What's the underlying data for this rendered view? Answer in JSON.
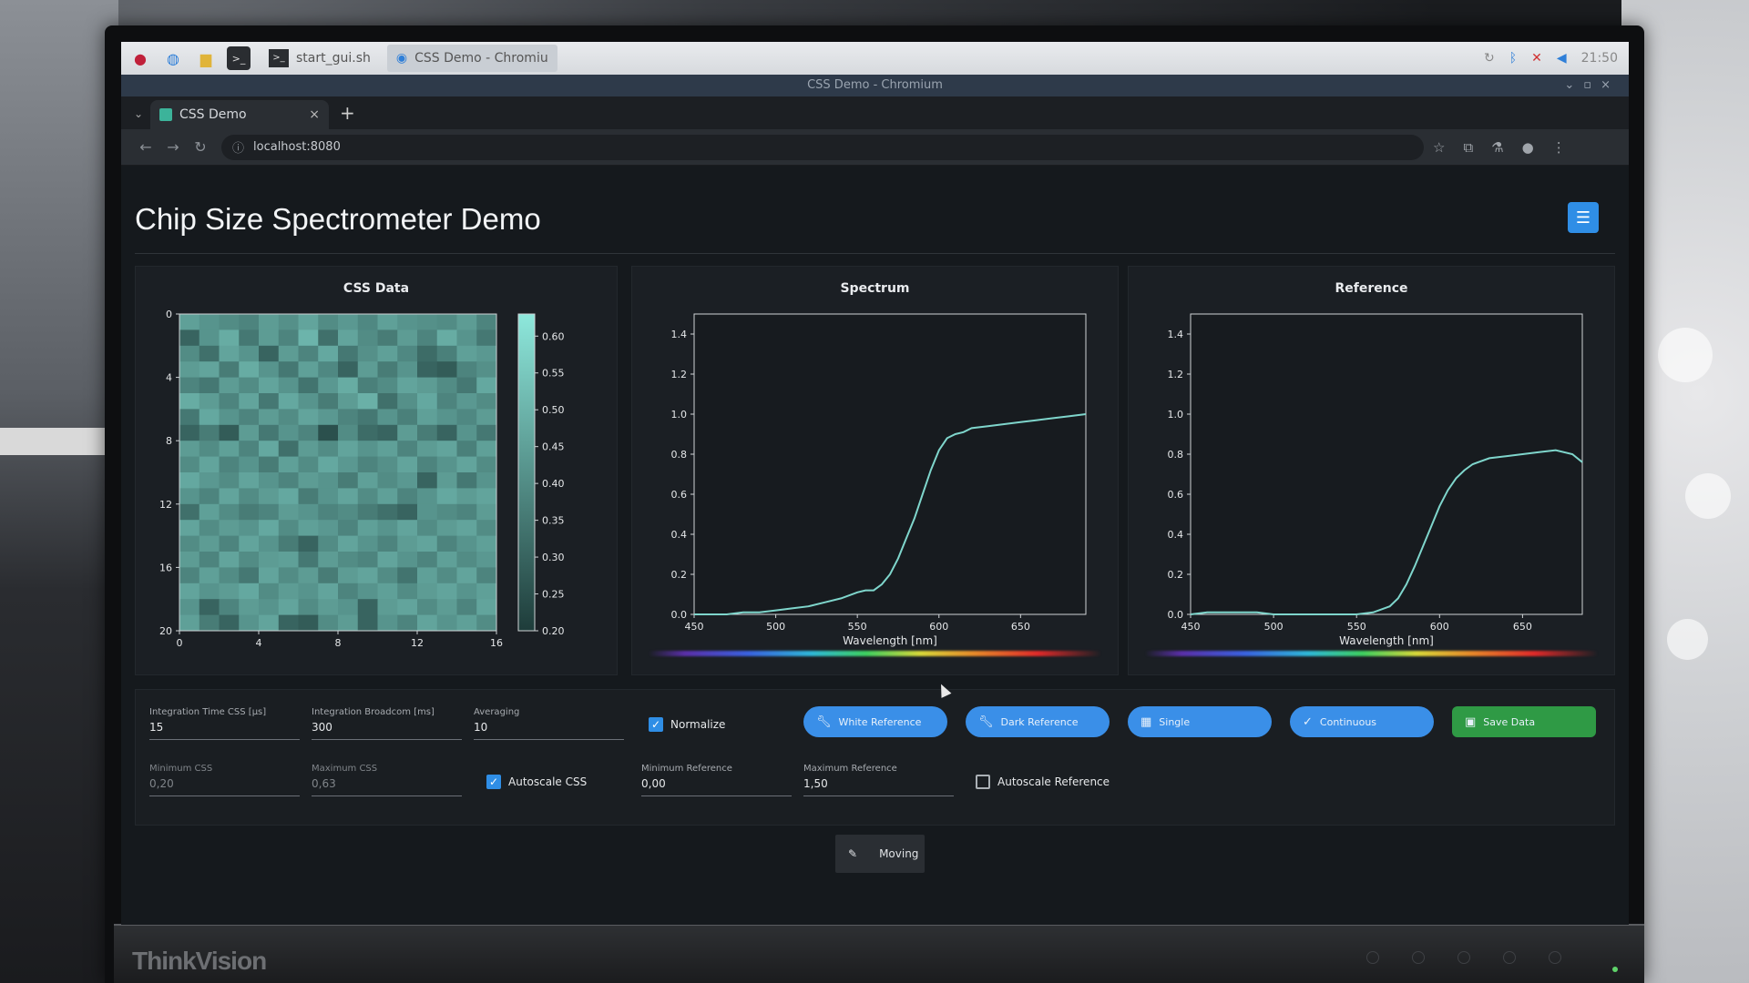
{
  "taskbar": {
    "tasks": [
      {
        "label": "start_gui.sh"
      },
      {
        "label": "CSS Demo - Chromiu"
      }
    ],
    "clock": "21:50"
  },
  "window": {
    "title": "CSS Demo - Chromium"
  },
  "browser": {
    "tab_label": "CSS Demo",
    "url": "localhost:8080"
  },
  "page": {
    "title": "Chip Size Spectrometer Demo"
  },
  "chart_data": [
    {
      "type": "heatmap",
      "title": "CSS Data",
      "xticks": [
        "0",
        "4",
        "8",
        "12",
        "16"
      ],
      "yticks": [
        "0",
        "4",
        "8",
        "12",
        "16",
        "20"
      ],
      "colorbar_ticks": [
        "0.60",
        "0.55",
        "0.50",
        "0.45",
        "0.40",
        "0.35",
        "0.30",
        "0.25",
        "0.20"
      ],
      "rows": 20,
      "cols": 16,
      "values": [
        [
          0.45,
          0.42,
          0.4,
          0.38,
          0.44,
          0.41,
          0.46,
          0.4,
          0.43,
          0.39,
          0.45,
          0.42,
          0.41,
          0.4,
          0.44,
          0.38
        ],
        [
          0.3,
          0.42,
          0.48,
          0.35,
          0.44,
          0.38,
          0.5,
          0.33,
          0.46,
          0.4,
          0.36,
          0.44,
          0.38,
          0.48,
          0.42,
          0.35
        ],
        [
          0.4,
          0.33,
          0.46,
          0.42,
          0.3,
          0.44,
          0.38,
          0.47,
          0.35,
          0.41,
          0.45,
          0.39,
          0.32,
          0.37,
          0.45,
          0.43
        ],
        [
          0.44,
          0.46,
          0.36,
          0.48,
          0.42,
          0.35,
          0.45,
          0.39,
          0.3,
          0.44,
          0.36,
          0.42,
          0.3,
          0.28,
          0.38,
          0.41
        ],
        [
          0.38,
          0.35,
          0.44,
          0.4,
          0.46,
          0.42,
          0.34,
          0.43,
          0.48,
          0.37,
          0.4,
          0.46,
          0.44,
          0.4,
          0.35,
          0.47
        ],
        [
          0.48,
          0.44,
          0.38,
          0.46,
          0.35,
          0.47,
          0.42,
          0.36,
          0.44,
          0.49,
          0.33,
          0.41,
          0.47,
          0.38,
          0.43,
          0.4
        ],
        [
          0.35,
          0.47,
          0.42,
          0.38,
          0.44,
          0.4,
          0.46,
          0.43,
          0.38,
          0.35,
          0.42,
          0.37,
          0.45,
          0.42,
          0.39,
          0.44
        ],
        [
          0.3,
          0.36,
          0.28,
          0.44,
          0.35,
          0.42,
          0.38,
          0.25,
          0.4,
          0.32,
          0.3,
          0.44,
          0.36,
          0.3,
          0.42,
          0.35
        ],
        [
          0.44,
          0.4,
          0.45,
          0.38,
          0.47,
          0.33,
          0.44,
          0.4,
          0.46,
          0.42,
          0.45,
          0.38,
          0.44,
          0.46,
          0.37,
          0.45
        ],
        [
          0.4,
          0.46,
          0.38,
          0.42,
          0.36,
          0.45,
          0.4,
          0.47,
          0.43,
          0.38,
          0.41,
          0.46,
          0.38,
          0.42,
          0.46,
          0.4
        ],
        [
          0.47,
          0.43,
          0.4,
          0.46,
          0.42,
          0.38,
          0.44,
          0.42,
          0.36,
          0.45,
          0.4,
          0.43,
          0.3,
          0.44,
          0.35,
          0.42
        ],
        [
          0.42,
          0.38,
          0.46,
          0.4,
          0.44,
          0.47,
          0.36,
          0.42,
          0.46,
          0.4,
          0.45,
          0.38,
          0.42,
          0.47,
          0.44,
          0.46
        ],
        [
          0.33,
          0.45,
          0.4,
          0.36,
          0.38,
          0.44,
          0.42,
          0.38,
          0.4,
          0.36,
          0.33,
          0.3,
          0.42,
          0.4,
          0.38,
          0.44
        ],
        [
          0.46,
          0.4,
          0.44,
          0.42,
          0.47,
          0.4,
          0.45,
          0.43,
          0.38,
          0.45,
          0.42,
          0.46,
          0.4,
          0.44,
          0.46,
          0.4
        ],
        [
          0.4,
          0.44,
          0.38,
          0.46,
          0.42,
          0.36,
          0.3,
          0.4,
          0.46,
          0.42,
          0.38,
          0.44,
          0.46,
          0.38,
          0.42,
          0.45
        ],
        [
          0.44,
          0.38,
          0.46,
          0.4,
          0.44,
          0.45,
          0.35,
          0.44,
          0.4,
          0.38,
          0.46,
          0.42,
          0.38,
          0.45,
          0.4,
          0.43
        ],
        [
          0.38,
          0.45,
          0.4,
          0.35,
          0.46,
          0.4,
          0.44,
          0.36,
          0.44,
          0.46,
          0.4,
          0.34,
          0.45,
          0.4,
          0.46,
          0.38
        ],
        [
          0.46,
          0.42,
          0.44,
          0.47,
          0.4,
          0.44,
          0.42,
          0.46,
          0.38,
          0.42,
          0.45,
          0.4,
          0.44,
          0.46,
          0.42,
          0.45
        ],
        [
          0.42,
          0.3,
          0.38,
          0.44,
          0.42,
          0.46,
          0.4,
          0.44,
          0.42,
          0.3,
          0.44,
          0.46,
          0.4,
          0.44,
          0.38,
          0.46
        ],
        [
          0.45,
          0.36,
          0.3,
          0.42,
          0.46,
          0.3,
          0.28,
          0.4,
          0.44,
          0.3,
          0.42,
          0.38,
          0.46,
          0.42,
          0.45,
          0.4
        ]
      ],
      "color_min": 0.2,
      "color_max": 0.63
    },
    {
      "type": "line",
      "title": "Spectrum",
      "xlabel": "Wavelength [nm]",
      "xticks": [
        450,
        500,
        550,
        600,
        650
      ],
      "yticks": [
        "0.0",
        "0.2",
        "0.4",
        "0.6",
        "0.8",
        "1.0",
        "1.2",
        "1.4"
      ],
      "xlim": [
        450,
        690
      ],
      "ylim": [
        0,
        1.5
      ],
      "x": [
        450,
        460,
        470,
        480,
        490,
        500,
        510,
        520,
        530,
        540,
        550,
        555,
        560,
        565,
        570,
        575,
        580,
        585,
        590,
        595,
        600,
        605,
        610,
        615,
        620,
        630,
        640,
        650,
        660,
        670,
        680,
        690
      ],
      "y": [
        0.0,
        0.0,
        0.0,
        0.01,
        0.01,
        0.02,
        0.03,
        0.04,
        0.06,
        0.08,
        0.11,
        0.12,
        0.12,
        0.15,
        0.2,
        0.28,
        0.38,
        0.48,
        0.6,
        0.72,
        0.82,
        0.88,
        0.9,
        0.91,
        0.93,
        0.94,
        0.95,
        0.96,
        0.97,
        0.98,
        0.99,
        1.0
      ]
    },
    {
      "type": "line",
      "title": "Reference",
      "xlabel": "Wavelength [nm]",
      "xticks": [
        450,
        500,
        550,
        600,
        650
      ],
      "yticks": [
        "0.0",
        "0.2",
        "0.4",
        "0.6",
        "0.8",
        "1.0",
        "1.2",
        "1.4"
      ],
      "xlim": [
        450,
        686
      ],
      "ylim": [
        0,
        1.5
      ],
      "x": [
        450,
        460,
        470,
        480,
        490,
        500,
        510,
        520,
        530,
        540,
        550,
        560,
        570,
        575,
        580,
        585,
        590,
        595,
        600,
        605,
        610,
        615,
        620,
        630,
        640,
        650,
        660,
        670,
        680,
        686
      ],
      "y": [
        0.0,
        0.01,
        0.01,
        0.01,
        0.01,
        0.0,
        0.0,
        0.0,
        0.0,
        0.0,
        0.0,
        0.01,
        0.04,
        0.08,
        0.15,
        0.24,
        0.34,
        0.44,
        0.54,
        0.62,
        0.68,
        0.72,
        0.75,
        0.78,
        0.79,
        0.8,
        0.81,
        0.82,
        0.8,
        0.76
      ]
    }
  ],
  "controls": {
    "integration_time_label": "Integration Time CSS [µs]",
    "integration_time_value": "15",
    "integration_broadcom_label": "Integration Broadcom [ms]",
    "integration_broadcom_value": "300",
    "averaging_label": "Averaging",
    "averaging_value": "10",
    "normalize_label": "Normalize",
    "normalize_checked": true,
    "min_css_label": "Minimum CSS",
    "min_css_value": "0,20",
    "max_css_label": "Maximum CSS",
    "max_css_value": "0,63",
    "autoscale_css_label": "Autoscale CSS",
    "autoscale_css_checked": true,
    "min_ref_label": "Minimum Reference",
    "min_ref_value": "0,00",
    "max_ref_label": "Maximum Reference",
    "max_ref_value": "1,50",
    "autoscale_ref_label": "Autoscale Reference",
    "autoscale_ref_checked": false,
    "buttons": {
      "white_ref": "White Reference",
      "dark_ref": "Dark Reference",
      "single": "Single",
      "continuous": "Continuous",
      "save": "Save Data"
    }
  },
  "toast": {
    "label": "Moving"
  },
  "monitor": {
    "brand": "ThinkVision"
  },
  "colors": {
    "accent": "#3a8fe8",
    "save": "#2f9a45",
    "line": "#7fd6cc",
    "heat_low": "#1e3c3a",
    "heat_high": "#8ee8dc"
  }
}
